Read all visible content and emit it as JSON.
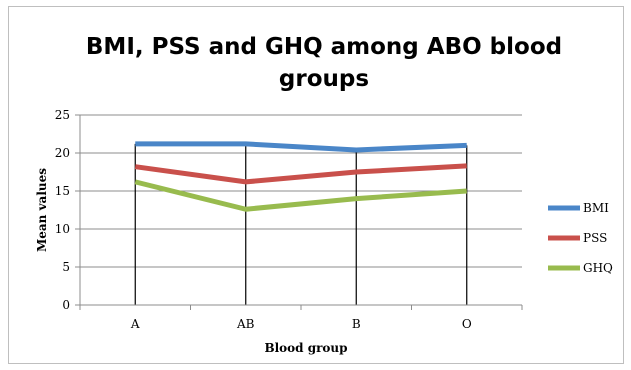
{
  "chart_data": {
    "type": "line",
    "title_lines": [
      "BMI, PSS and GHQ among ABO blood",
      "groups"
    ],
    "xlabel": "Blood group",
    "ylabel": "Mean values",
    "categories": [
      "A",
      "AB",
      "B",
      "O"
    ],
    "ylim": [
      0,
      25
    ],
    "yticks": [
      0,
      5,
      10,
      15,
      20,
      25
    ],
    "grid": true,
    "legend_position": "right",
    "series": [
      {
        "name": "BMI",
        "values": [
          21.2,
          21.2,
          20.4,
          21.0
        ],
        "color": "#4a86c8"
      },
      {
        "name": "PSS",
        "values": [
          18.2,
          16.2,
          17.5,
          18.3
        ],
        "color": "#c9504b"
      },
      {
        "name": "GHQ",
        "values": [
          16.2,
          12.6,
          14.0,
          15.0
        ],
        "color": "#98bb4e"
      }
    ]
  }
}
